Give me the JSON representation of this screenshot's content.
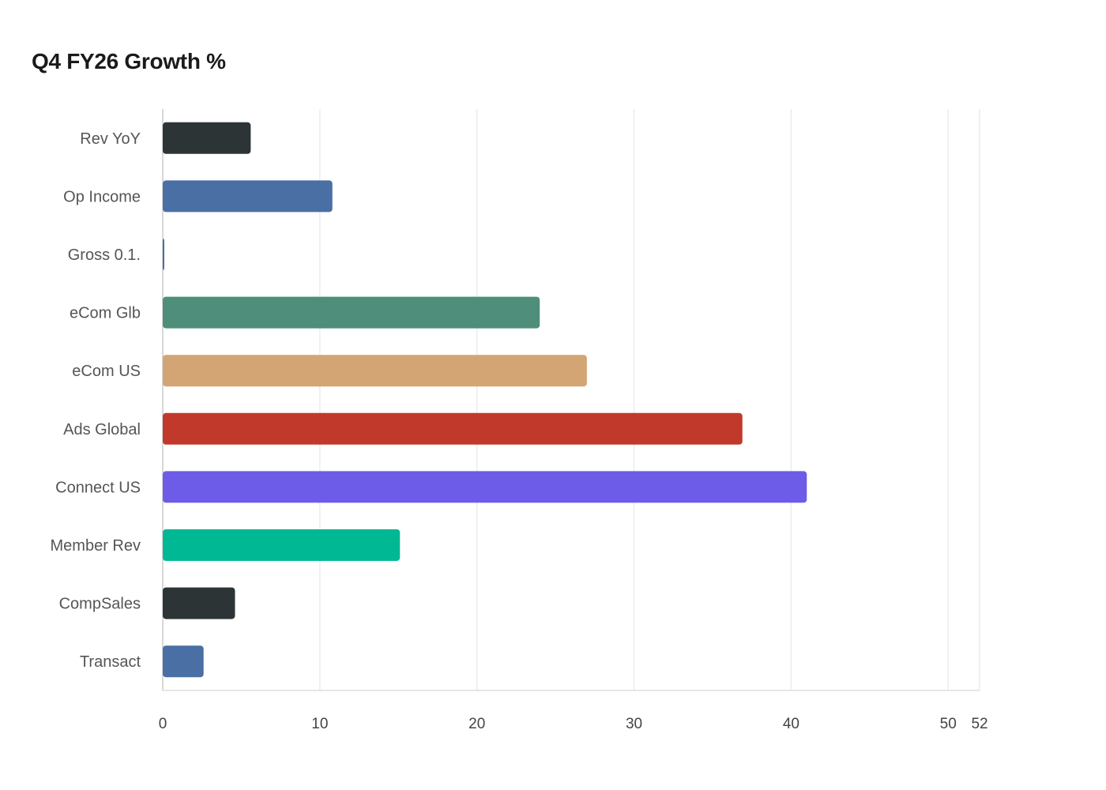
{
  "chart_data": {
    "type": "bar",
    "orientation": "horizontal",
    "title": "Q4 FY26 Growth %",
    "xlabel": "",
    "ylabel": "",
    "categories": [
      "Rev YoY",
      "Op Income",
      "Gross 0.1.",
      "eCom Glb",
      "eCom US",
      "Ads Global",
      "Connect US",
      "Member Rev",
      "CompSales",
      "Transact"
    ],
    "values": [
      5.6,
      10.8,
      0.1,
      24.0,
      27.0,
      36.9,
      41.0,
      15.1,
      4.6,
      2.6
    ],
    "colors": [
      "#2c3436",
      "#4a6fa5",
      "#4a6fa5",
      "#4e8e7a",
      "#d4a574",
      "#c0392b",
      "#6c5ce7",
      "#00b894",
      "#2c3436",
      "#4a6fa5"
    ],
    "xlim": [
      0,
      52
    ],
    "xticks": [
      "0",
      "10",
      "20",
      "30",
      "40",
      "50",
      "52"
    ],
    "grid": true
  }
}
